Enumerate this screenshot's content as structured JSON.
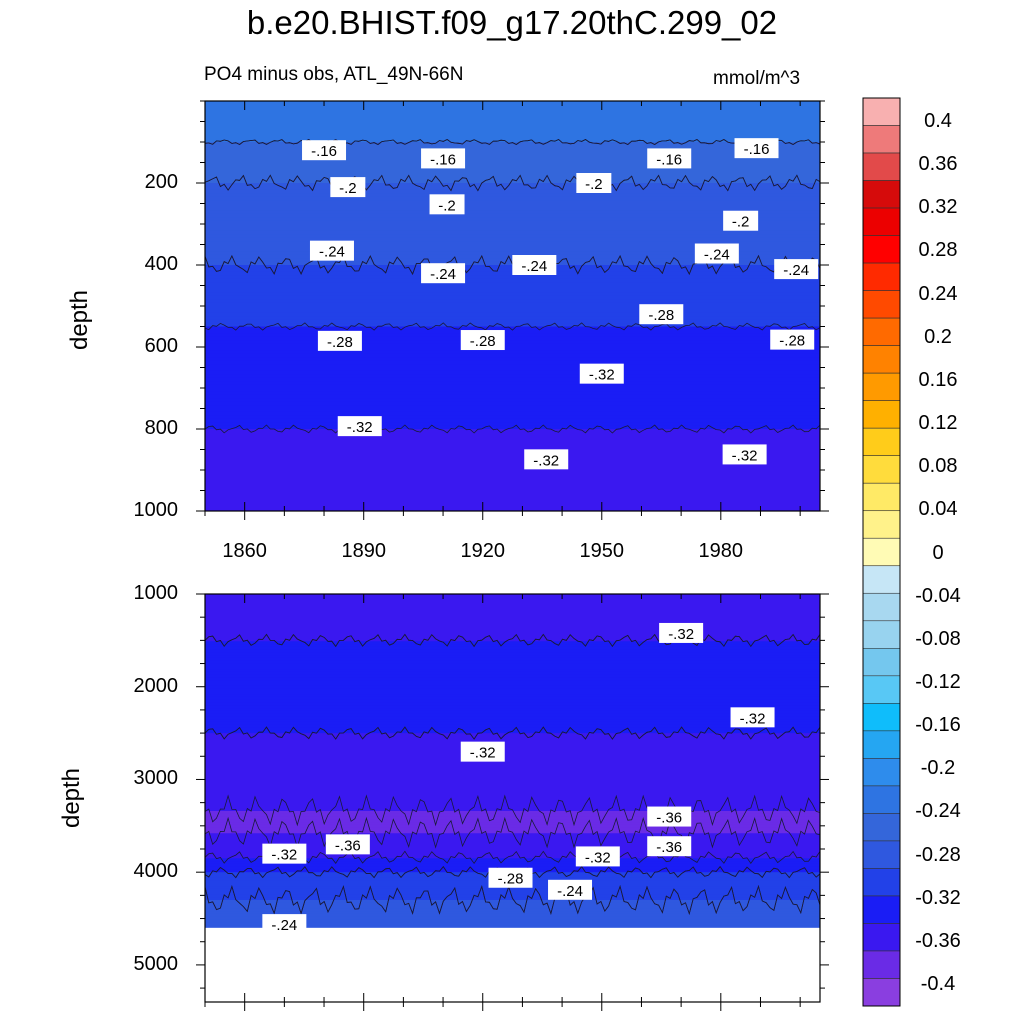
{
  "title": "b.e20.BHIST.f09_g17.20thC.299_02",
  "subtitle": "PO4 minus obs, ATL_49N-66N",
  "units": "mmol/m^3",
  "colors": {
    "levels": [
      "#8a3ee0",
      "#6a2be6",
      "#3a18f0",
      "#1a1df5",
      "#2241e8",
      "#2f58df",
      "#3466da",
      "#2e74e2",
      "#2e8cec",
      "#25a6f2",
      "#0fbdfb",
      "#58c8f5",
      "#74c7ee",
      "#98d3ef",
      "#a8d8f0",
      "#c6e6f6",
      "#fffbb5",
      "#fff28a",
      "#ffea66",
      "#ffdc3c",
      "#ffcc1a",
      "#ffb000",
      "#ff9a00",
      "#ff8200",
      "#ff6a00",
      "#ff4a00",
      "#ff2a00",
      "#ff0000",
      "#ec0000",
      "#d60b0b",
      "#e24a4a",
      "#ee7a7a",
      "#f8b0b0"
    ]
  },
  "chart_data": [
    {
      "type": "heatmap",
      "panel": "upper",
      "title": "PO4 minus obs, ATL_49N-66N",
      "ylabel": "depth",
      "xlabel": "",
      "units": "mmol/m^3",
      "xlim": [
        1850,
        2005
      ],
      "ylim": [
        0,
        1000
      ],
      "y_inverted": true,
      "xticks": [
        1860,
        1890,
        1920,
        1950,
        1980
      ],
      "yticks": [
        200,
        400,
        600,
        800,
        1000
      ],
      "depth_profile": [
        {
          "depth": 0,
          "value": -0.14
        },
        {
          "depth": 100,
          "value": -0.16
        },
        {
          "depth": 200,
          "value": -0.2
        },
        {
          "depth": 300,
          "value": -0.22
        },
        {
          "depth": 400,
          "value": -0.24
        },
        {
          "depth": 500,
          "value": -0.27
        },
        {
          "depth": 600,
          "value": -0.29
        },
        {
          "depth": 700,
          "value": -0.31
        },
        {
          "depth": 800,
          "value": -0.32
        },
        {
          "depth": 1000,
          "value": -0.32
        }
      ],
      "contour_labels": [
        {
          "text": "-.16",
          "year": 1880,
          "depth": 120
        },
        {
          "text": "-.16",
          "year": 1910,
          "depth": 140
        },
        {
          "text": "-.16",
          "year": 1967,
          "depth": 140
        },
        {
          "text": "-.16",
          "year": 1989,
          "depth": 115
        },
        {
          "text": "-.2",
          "year": 1886,
          "depth": 210
        },
        {
          "text": "-.2",
          "year": 1911,
          "depth": 252
        },
        {
          "text": "-.2",
          "year": 1948,
          "depth": 200
        },
        {
          "text": "-.2",
          "year": 1985,
          "depth": 292
        },
        {
          "text": "-.24",
          "year": 1882,
          "depth": 365
        },
        {
          "text": "-.24",
          "year": 1910,
          "depth": 420
        },
        {
          "text": "-.24",
          "year": 1933,
          "depth": 400
        },
        {
          "text": "-.24",
          "year": 1979,
          "depth": 372
        },
        {
          "text": "-.24",
          "year": 1999,
          "depth": 410
        },
        {
          "text": "-.28",
          "year": 1884,
          "depth": 585
        },
        {
          "text": "-.28",
          "year": 1920,
          "depth": 583
        },
        {
          "text": "-.28",
          "year": 1965,
          "depth": 520
        },
        {
          "text": "-.28",
          "year": 1998,
          "depth": 582
        },
        {
          "text": "-.32",
          "year": 1889,
          "depth": 793
        },
        {
          "text": "-.32",
          "year": 1950,
          "depth": 665
        },
        {
          "text": "-.32",
          "year": 1936,
          "depth": 874
        },
        {
          "text": "-.32",
          "year": 1986,
          "depth": 862
        }
      ]
    },
    {
      "type": "heatmap",
      "panel": "lower",
      "ylabel": "depth",
      "xlabel": "",
      "units": "mmol/m^3",
      "xlim": [
        1850,
        2005
      ],
      "ylim": [
        1000,
        5400
      ],
      "y_inverted": true,
      "xticks": [
        1860,
        1890,
        1920,
        1950,
        1980
      ],
      "yticks": [
        1000,
        2000,
        3000,
        4000,
        5000
      ],
      "no_data_below_depth": 4600,
      "depth_profile": [
        {
          "depth": 1000,
          "value": -0.33
        },
        {
          "depth": 1500,
          "value": -0.32
        },
        {
          "depth": 2000,
          "value": -0.31
        },
        {
          "depth": 2500,
          "value": -0.32
        },
        {
          "depth": 3000,
          "value": -0.34
        },
        {
          "depth": 3500,
          "value": -0.37
        },
        {
          "depth": 3800,
          "value": -0.33
        },
        {
          "depth": 4000,
          "value": -0.28
        },
        {
          "depth": 4300,
          "value": -0.24
        },
        {
          "depth": 4600,
          "value": -0.22
        }
      ],
      "contour_labels": [
        {
          "text": "-.32",
          "year": 1970,
          "depth": 1420
        },
        {
          "text": "-.32",
          "year": 1988,
          "depth": 2330
        },
        {
          "text": "-.32",
          "year": 1920,
          "depth": 2700
        },
        {
          "text": "-.36",
          "year": 1967,
          "depth": 3400
        },
        {
          "text": "-.36",
          "year": 1886,
          "depth": 3700
        },
        {
          "text": "-.36",
          "year": 1967,
          "depth": 3720
        },
        {
          "text": "-.32",
          "year": 1870,
          "depth": 3800
        },
        {
          "text": "-.32",
          "year": 1949,
          "depth": 3830
        },
        {
          "text": "-.28",
          "year": 1927,
          "depth": 4060
        },
        {
          "text": "-.24",
          "year": 1942,
          "depth": 4190
        },
        {
          "text": "-.24",
          "year": 1870,
          "depth": 4560
        }
      ]
    },
    {
      "type": "colorbar",
      "levels": [
        0.4,
        0.36,
        0.32,
        0.28,
        0.24,
        0.2,
        0.16,
        0.12,
        0.08,
        0.04,
        0,
        -0.04,
        -0.08,
        -0.12,
        -0.16,
        -0.2,
        -0.24,
        -0.28,
        -0.32,
        -0.36,
        -0.4
      ],
      "labels": [
        "0.4",
        "0.36",
        "0.32",
        "0.28",
        "0.24",
        "0.2",
        "0.16",
        "0.12",
        "0.08",
        "0.04",
        "0",
        "-0.04",
        "-0.08",
        "-0.12",
        "-0.16",
        "-0.2",
        "-0.24",
        "-0.28",
        "-0.32",
        "-0.36",
        "-0.4"
      ]
    }
  ],
  "axes": {
    "upper": {
      "ylabel": "depth",
      "yticks": [
        "200",
        "400",
        "600",
        "800",
        "1000"
      ],
      "xticks": [
        "1860",
        "1890",
        "1920",
        "1950",
        "1980"
      ]
    },
    "lower": {
      "ylabel": "depth",
      "yticks": [
        "1000",
        "2000",
        "3000",
        "4000",
        "5000"
      ]
    }
  }
}
